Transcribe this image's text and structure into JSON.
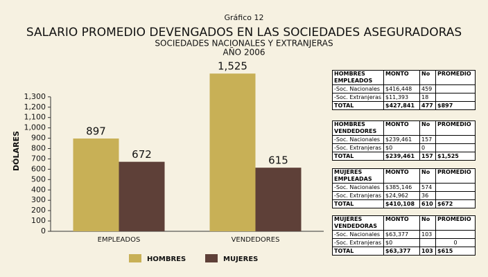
{
  "chart_data": {
    "type": "bar",
    "caption": "Gráfico 12",
    "title": "SALARIO PROMEDIO DEVENGADOS EN LAS SOCIEDADES ASEGURADORAS",
    "subtitle": [
      "SOCIEDADES NACIONALES Y EXTRANJERAS",
      "AÑO 2006"
    ],
    "y_label": "DÓLARES",
    "categories": [
      "EMPLEADOS",
      "VENDEDORES"
    ],
    "series": [
      {
        "name": "HOMBRES",
        "color": "#c8b056",
        "values": [
          897,
          1525
        ],
        "value_labels": [
          "897",
          "1,525"
        ]
      },
      {
        "name": "MUJERES",
        "color": "#5e4038",
        "values": [
          672,
          615
        ],
        "value_labels": [
          "672",
          "615"
        ]
      }
    ],
    "ylim": [
      0,
      1560
    ],
    "yticks": [
      0,
      100,
      200,
      300,
      400,
      500,
      600,
      700,
      800,
      900,
      {
        "value": 1000,
        "label": "1,000"
      },
      {
        "value": 1100,
        "label": "1,100"
      },
      {
        "value": 1200,
        "label": "1,200"
      },
      {
        "value": 1300,
        "label": "1,300"
      }
    ],
    "legend": "bottom"
  },
  "tables": [
    {
      "header": [
        "HOMBRES EMPLEADOS",
        "MONTO",
        "No",
        "PROMEDIO"
      ],
      "rows": [
        [
          "-Soc. Nacionales",
          "$416,448",
          "459",
          null
        ],
        [
          "-Soc. Extranjeras",
          "$11,393",
          "18",
          null
        ],
        [
          "TOTAL",
          "$427,841",
          "477",
          "$897"
        ]
      ]
    },
    {
      "header": [
        "HOMBRES VENDEDORES",
        "MONTO",
        "No",
        "PROMEDIO"
      ],
      "rows": [
        [
          "-Soc. Nacionales",
          "$239,461",
          "157",
          null
        ],
        [
          "-Soc. Extranjeras",
          "$0",
          "0",
          null
        ],
        [
          "TOTAL",
          "$239,461",
          "157",
          "$1,525"
        ]
      ]
    },
    {
      "header": [
        "MUJERES EMPLEADAS",
        "MONTO",
        "No",
        "PROMEDIO"
      ],
      "rows": [
        [
          "-Soc. Nacionales",
          "$385,146",
          "574",
          null
        ],
        [
          "-Soc. Extranjeras",
          "$24,962",
          "36",
          null
        ],
        [
          "TOTAL",
          "$410,108",
          "610",
          "$672"
        ]
      ]
    },
    {
      "header": [
        "MUJERES VENDEDORAS",
        "MONTO",
        "No",
        "PROMEDIO"
      ],
      "rows": [
        [
          "-Soc. Nacionales",
          "$63,377",
          "103",
          null
        ],
        [
          "-Soc. Extranjeras",
          "$0",
          null,
          "0"
        ],
        [
          "TOTAL",
          "$63,377",
          "103",
          "$615"
        ]
      ]
    }
  ]
}
